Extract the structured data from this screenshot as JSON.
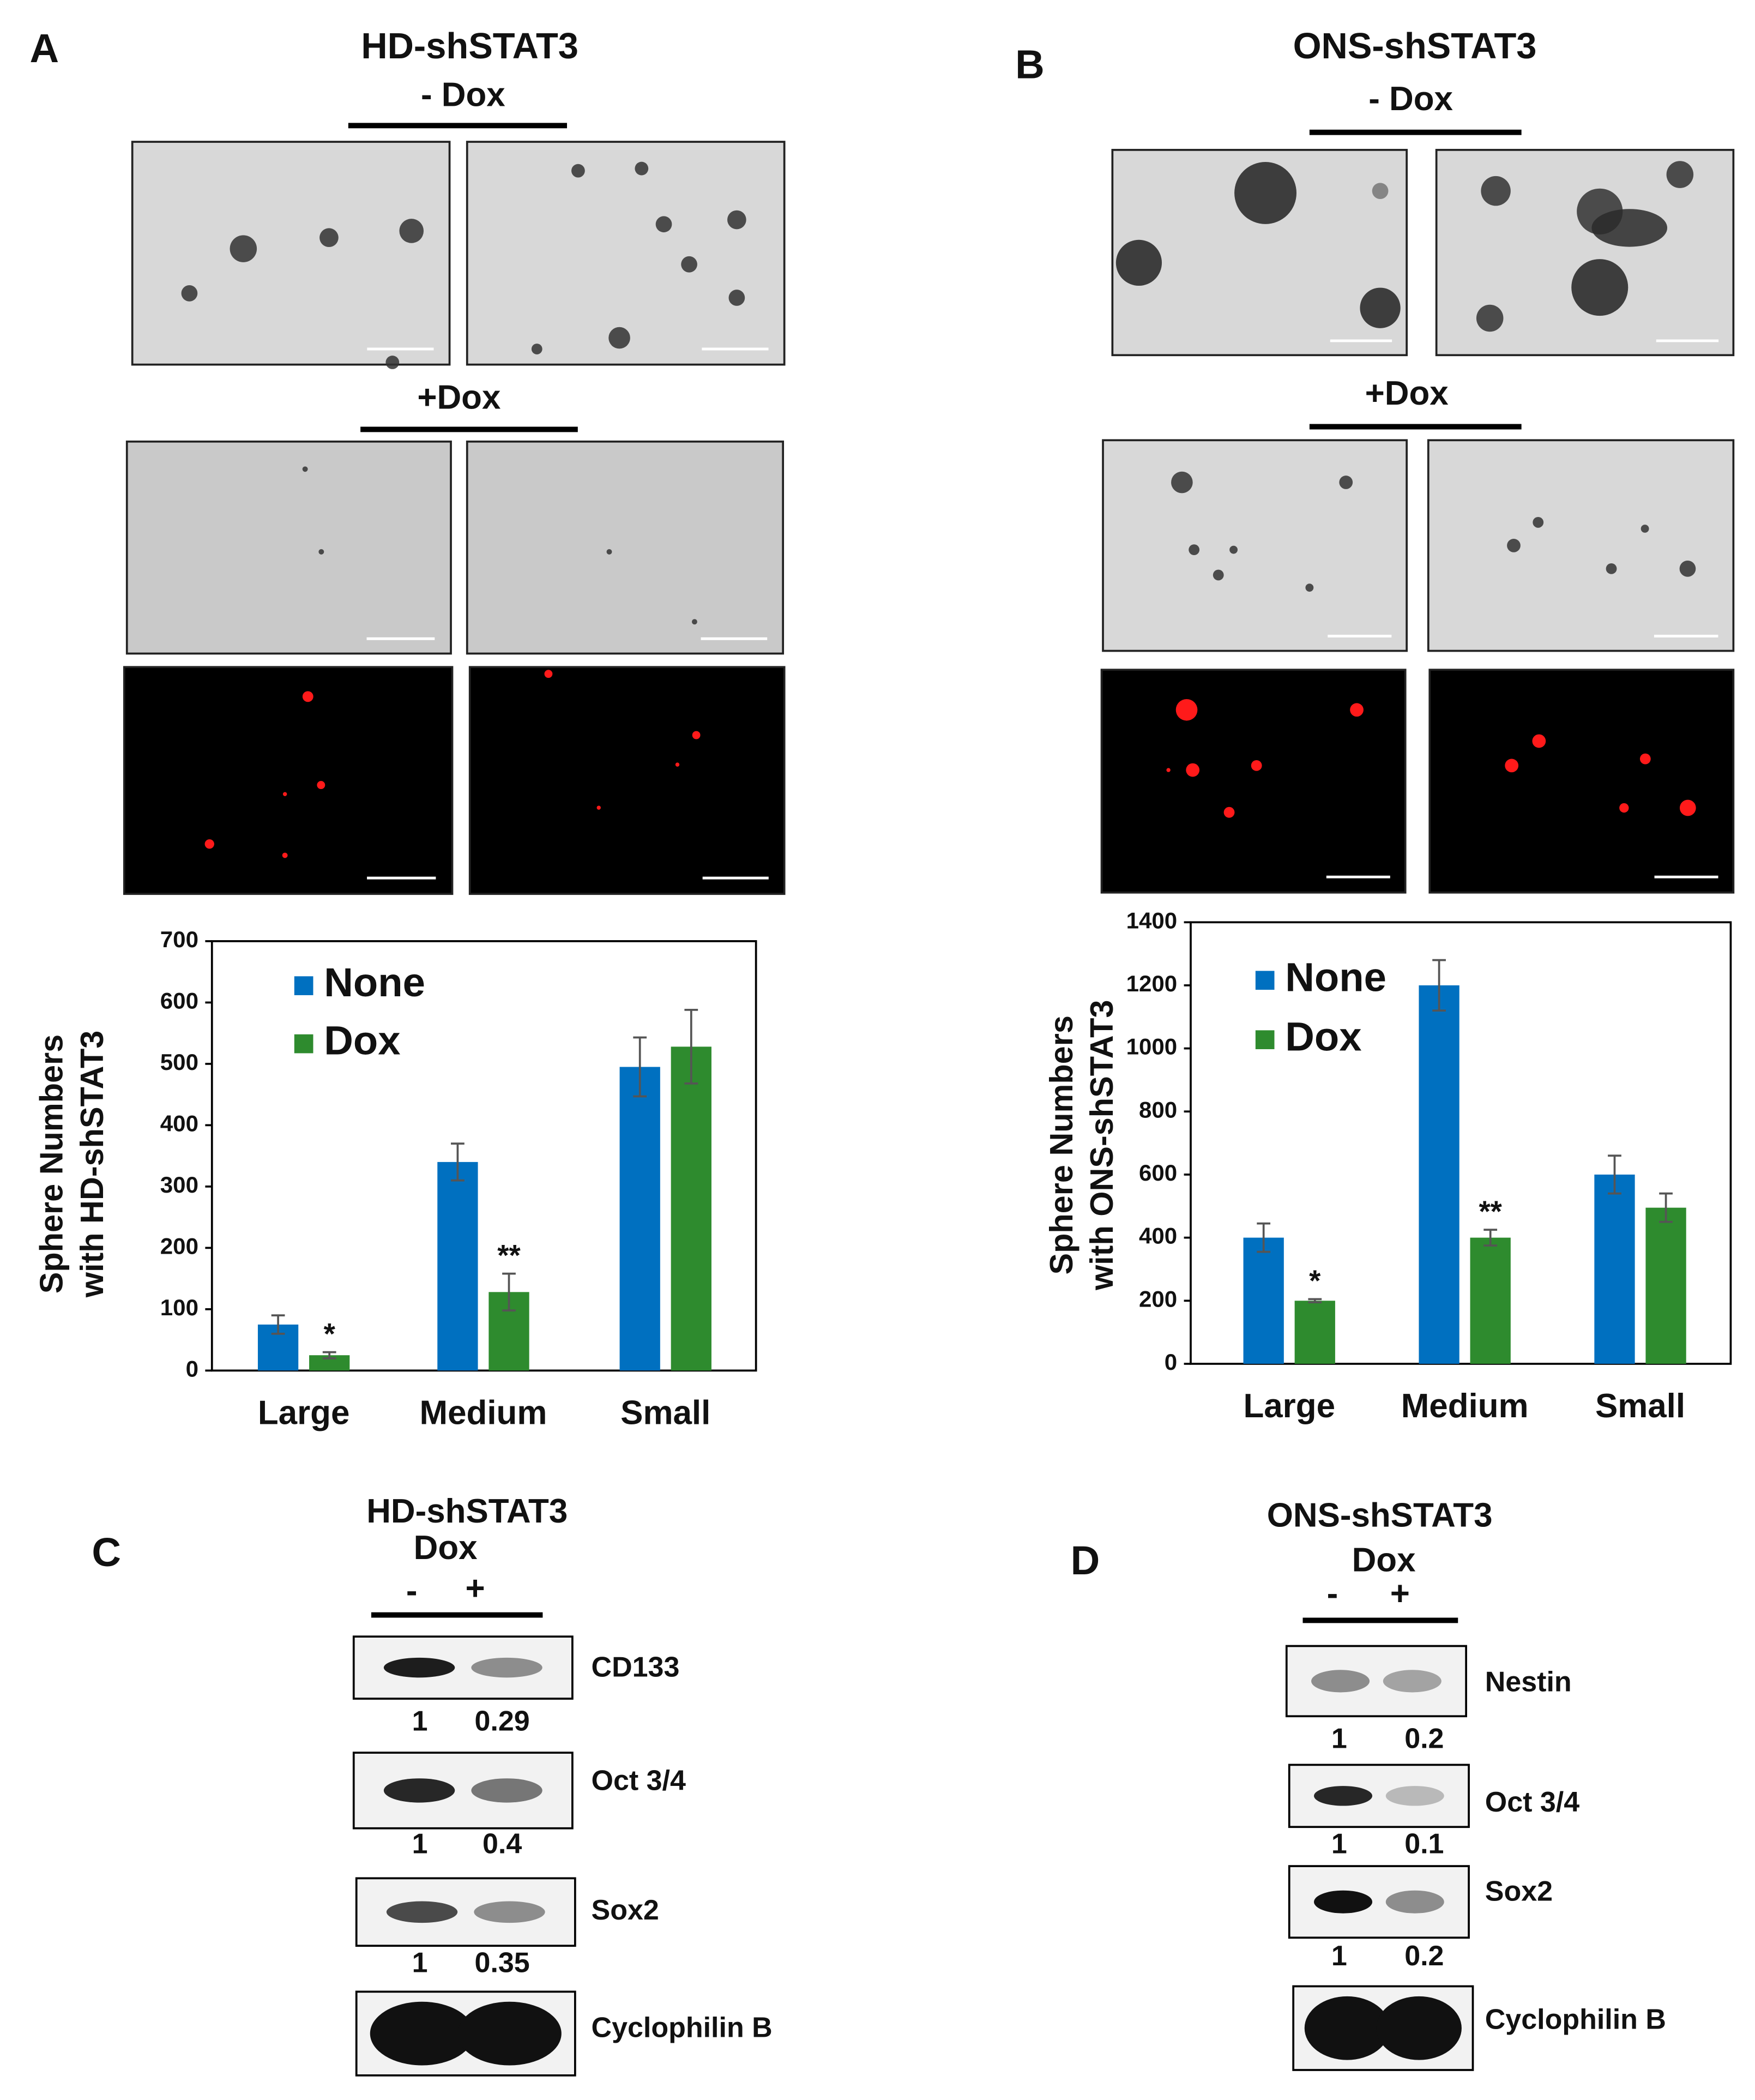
{
  "panel_a": {
    "label": "A",
    "title": "HD-shSTAT3",
    "minus": "- Dox",
    "plus": "+Dox"
  },
  "panel_b": {
    "label": "B",
    "title": "ONS-shSTAT3",
    "minus": "- Dox",
    "plus": "+Dox"
  },
  "chart_data": [
    {
      "type": "bar",
      "ylabel": [
        "Sphere Numbers",
        "with HD-shSTAT3"
      ],
      "categories": [
        "Large",
        "Medium",
        "Small"
      ],
      "series": [
        {
          "name": "None",
          "color": "#0070c0",
          "values": [
            75,
            340,
            495
          ],
          "errors": [
            15,
            30,
            48
          ]
        },
        {
          "name": "Dox",
          "color": "#2e8b2e",
          "values": [
            25,
            128,
            528
          ],
          "errors": [
            5,
            30,
            60
          ]
        }
      ],
      "annotations": [
        "*",
        "**"
      ],
      "ylim": [
        0,
        700
      ],
      "yticks": [
        0,
        100,
        200,
        300,
        400,
        500,
        600,
        700
      ],
      "legend": "upper left"
    },
    {
      "type": "bar",
      "ylabel": [
        "Sphere Numbers",
        "with ONS-shSTAT3"
      ],
      "categories": [
        "Large",
        "Medium",
        "Small"
      ],
      "series": [
        {
          "name": "None",
          "color": "#0070c0",
          "values": [
            400,
            1200,
            600
          ],
          "errors": [
            45,
            80,
            60
          ]
        },
        {
          "name": "Dox",
          "color": "#2e8b2e",
          "values": [
            200,
            400,
            495
          ],
          "errors": [
            5,
            25,
            45
          ]
        }
      ],
      "annotations": [
        "*",
        "**"
      ],
      "ylim": [
        0,
        1400
      ],
      "yticks": [
        0,
        200,
        400,
        600,
        800,
        1000,
        1200,
        1400
      ],
      "legend": "upper left"
    }
  ],
  "blot_c": {
    "label": "C",
    "title": [
      "HD-shSTAT3",
      "Dox"
    ],
    "lanes": [
      "-",
      "+"
    ],
    "bands": [
      {
        "name": "CD133",
        "values": [
          1,
          0.29
        ]
      },
      {
        "name": "Oct 3/4",
        "values": [
          1,
          0.4
        ]
      },
      {
        "name": "Sox2",
        "values": [
          1,
          0.35
        ]
      },
      {
        "name": "Cyclophilin B"
      }
    ]
  },
  "blot_d": {
    "label": "D",
    "title": [
      "ONS-shSTAT3",
      "Dox"
    ],
    "lanes": [
      "-",
      "+"
    ],
    "bands": [
      {
        "name": "Nestin",
        "values": [
          1,
          0.2
        ]
      },
      {
        "name": "Oct 3/4",
        "values": [
          1,
          0.1
        ]
      },
      {
        "name": "Sox2",
        "values": [
          1,
          0.2
        ]
      },
      {
        "name": "Cyclophilin B"
      }
    ]
  }
}
